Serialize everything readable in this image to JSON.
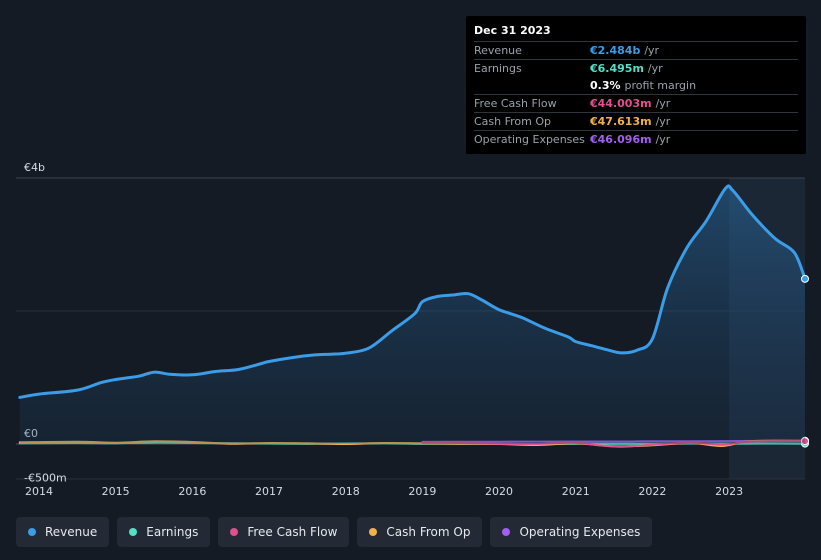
{
  "tooltip": {
    "date": "Dec 31 2023",
    "rows": [
      {
        "label": "Revenue",
        "value": "€2.484b",
        "unit": "/yr",
        "color": "#3b9ce8"
      },
      {
        "label": "Earnings",
        "value": "€6.495m",
        "unit": "/yr",
        "color": "#52e0c8"
      },
      {
        "label": "",
        "value": "0.3%",
        "unit": "profit margin",
        "color": "#ffffff"
      },
      {
        "label": "Free Cash Flow",
        "value": "€44.003m",
        "unit": "/yr",
        "color": "#e0508f"
      },
      {
        "label": "Cash From Op",
        "value": "€47.613m",
        "unit": "/yr",
        "color": "#f0b050"
      },
      {
        "label": "Operating Expenses",
        "value": "€46.096m",
        "unit": "/yr",
        "color": "#a45ff2"
      }
    ]
  },
  "legend": [
    {
      "label": "Revenue",
      "color": "#3b9ce8"
    },
    {
      "label": "Earnings",
      "color": "#52e0c8"
    },
    {
      "label": "Free Cash Flow",
      "color": "#e0508f"
    },
    {
      "label": "Cash From Op",
      "color": "#f0b050"
    },
    {
      "label": "Operating Expenses",
      "color": "#a45ff2"
    }
  ],
  "chart_data": {
    "type": "area",
    "title": "",
    "y_tick_labels": [
      "€4b",
      "€0",
      "-€500m"
    ],
    "y_tick_values": [
      4000,
      0,
      -500
    ],
    "ylim": [
      -500,
      4000
    ],
    "xlim": [
      2013.7,
      2023.99
    ],
    "x_tick_labels": [
      "2014",
      "2015",
      "2016",
      "2017",
      "2018",
      "2019",
      "2020",
      "2021",
      "2022",
      "2023"
    ],
    "x_tick_values": [
      2014,
      2015,
      2016,
      2017,
      2018,
      2019,
      2020,
      2021,
      2022,
      2023
    ],
    "highlight_from": 2023.0,
    "series": [
      {
        "name": "Revenue",
        "color": "#3b9ce8",
        "points": [
          [
            2013.75,
            700
          ],
          [
            2014.0,
            750
          ],
          [
            2014.5,
            810
          ],
          [
            2014.8,
            920
          ],
          [
            2015.0,
            970
          ],
          [
            2015.3,
            1020
          ],
          [
            2015.5,
            1080
          ],
          [
            2015.7,
            1050
          ],
          [
            2016.0,
            1040
          ],
          [
            2016.3,
            1090
          ],
          [
            2016.6,
            1120
          ],
          [
            2016.9,
            1210
          ],
          [
            2017.0,
            1240
          ],
          [
            2017.3,
            1300
          ],
          [
            2017.6,
            1340
          ],
          [
            2017.8,
            1350
          ],
          [
            2018.0,
            1365
          ],
          [
            2018.3,
            1440
          ],
          [
            2018.6,
            1700
          ],
          [
            2018.9,
            1960
          ],
          [
            2019.0,
            2140
          ],
          [
            2019.2,
            2220
          ],
          [
            2019.4,
            2240
          ],
          [
            2019.6,
            2260
          ],
          [
            2019.8,
            2150
          ],
          [
            2020.0,
            2020
          ],
          [
            2020.3,
            1900
          ],
          [
            2020.6,
            1740
          ],
          [
            2020.9,
            1610
          ],
          [
            2021.0,
            1540
          ],
          [
            2021.2,
            1480
          ],
          [
            2021.4,
            1420
          ],
          [
            2021.6,
            1370
          ],
          [
            2021.8,
            1410
          ],
          [
            2022.0,
            1580
          ],
          [
            2022.2,
            2350
          ],
          [
            2022.45,
            2950
          ],
          [
            2022.7,
            3350
          ],
          [
            2022.95,
            3840
          ],
          [
            2023.05,
            3810
          ],
          [
            2023.3,
            3450
          ],
          [
            2023.6,
            3090
          ],
          [
            2023.85,
            2880
          ],
          [
            2023.99,
            2484
          ]
        ]
      },
      {
        "name": "Earnings",
        "color": "#52e0c8",
        "points": [
          [
            2013.75,
            10
          ],
          [
            2014.5,
            15
          ],
          [
            2015.0,
            12
          ],
          [
            2015.5,
            20
          ],
          [
            2016.0,
            15
          ],
          [
            2016.5,
            10
          ],
          [
            2017.0,
            8
          ],
          [
            2017.5,
            5
          ],
          [
            2018.0,
            8
          ],
          [
            2018.5,
            12
          ],
          [
            2019.0,
            5
          ],
          [
            2019.5,
            3
          ],
          [
            2020.0,
            2
          ],
          [
            2020.5,
            0
          ],
          [
            2021.0,
            5
          ],
          [
            2021.5,
            3
          ],
          [
            2022.0,
            5
          ],
          [
            2022.5,
            8
          ],
          [
            2023.0,
            6
          ],
          [
            2023.5,
            7
          ],
          [
            2023.99,
            6.5
          ]
        ]
      },
      {
        "name": "Free Cash Flow",
        "color": "#e0508f",
        "points": [
          [
            2019.0,
            20
          ],
          [
            2019.5,
            15
          ],
          [
            2020.0,
            5
          ],
          [
            2020.5,
            0
          ],
          [
            2021.0,
            20
          ],
          [
            2021.3,
            -20
          ],
          [
            2021.6,
            -40
          ],
          [
            2022.0,
            -10
          ],
          [
            2022.5,
            20
          ],
          [
            2022.9,
            -10
          ],
          [
            2023.2,
            30
          ],
          [
            2023.5,
            40
          ],
          [
            2023.99,
            44
          ]
        ]
      },
      {
        "name": "Cash From Op",
        "color": "#f0b050",
        "points": [
          [
            2013.75,
            25
          ],
          [
            2014.5,
            35
          ],
          [
            2015.0,
            20
          ],
          [
            2015.5,
            40
          ],
          [
            2016.0,
            30
          ],
          [
            2016.5,
            5
          ],
          [
            2017.0,
            15
          ],
          [
            2017.5,
            10
          ],
          [
            2018.0,
            0
          ],
          [
            2018.5,
            15
          ],
          [
            2019.0,
            10
          ],
          [
            2019.5,
            5
          ],
          [
            2020.0,
            0
          ],
          [
            2020.5,
            -15
          ],
          [
            2021.0,
            10
          ],
          [
            2021.5,
            -35
          ],
          [
            2022.0,
            -20
          ],
          [
            2022.5,
            15
          ],
          [
            2022.9,
            -30
          ],
          [
            2023.2,
            35
          ],
          [
            2023.5,
            50
          ],
          [
            2023.99,
            48
          ]
        ]
      },
      {
        "name": "Operating Expenses",
        "color": "#a45ff2",
        "points": [
          [
            2019.0,
            32
          ],
          [
            2019.5,
            34
          ],
          [
            2020.0,
            35
          ],
          [
            2020.5,
            36
          ],
          [
            2021.0,
            38
          ],
          [
            2021.5,
            38
          ],
          [
            2022.0,
            40
          ],
          [
            2022.5,
            42
          ],
          [
            2023.0,
            44
          ],
          [
            2023.5,
            48
          ],
          [
            2023.99,
            46
          ]
        ]
      }
    ]
  }
}
